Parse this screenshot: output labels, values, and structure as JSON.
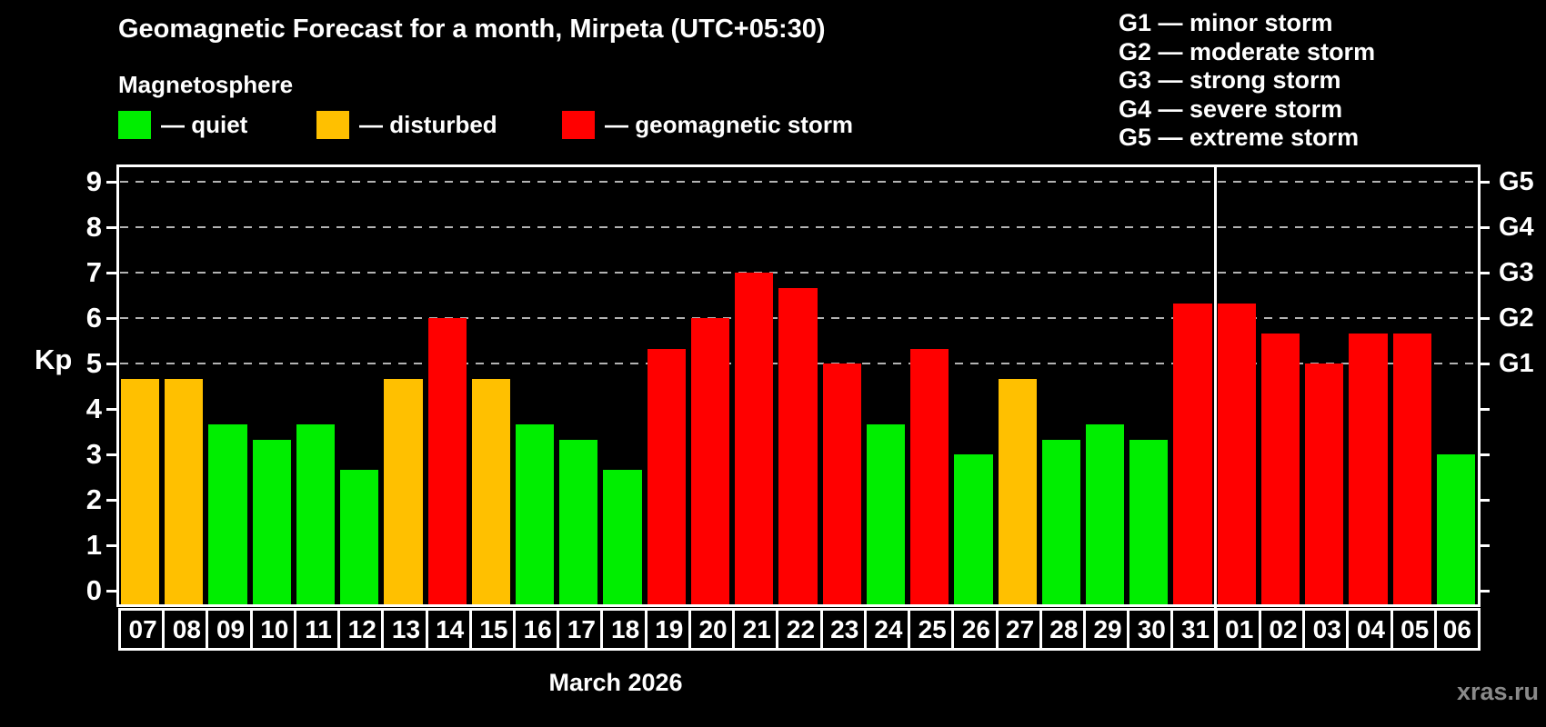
{
  "header": {
    "title": "Geomagnetic Forecast for a month, Mirpeta (UTC+05:30)",
    "subtitle": "Magnetosphere"
  },
  "legend": {
    "items": [
      {
        "id": "quiet",
        "label": "— quiet",
        "color": "#00ee00"
      },
      {
        "id": "disturbed",
        "label": "— disturbed",
        "color": "#ffc000"
      },
      {
        "id": "storm",
        "label": "— geomagnetic storm",
        "color": "#ff0000"
      }
    ],
    "g_scale": [
      "G1 — minor storm",
      "G2 — moderate storm",
      "G3 — strong storm",
      "G4 — severe storm",
      "G5 — extreme storm"
    ]
  },
  "footer": {
    "watermark": "xras.ru"
  },
  "chart_data": {
    "type": "bar",
    "title": "Geomagnetic Forecast for a month, Mirpeta (UTC+05:30)",
    "xlabel": "March 2026",
    "ylabel": "Kp",
    "ylim": [
      0,
      9
    ],
    "y_ticks": [
      0,
      1,
      2,
      3,
      4,
      5,
      6,
      7,
      8,
      9
    ],
    "gridlines_at": [
      5,
      6,
      7,
      8,
      9
    ],
    "grid": "horizontal dashed at storm levels",
    "right_axis": [
      {
        "kp": 5,
        "label": "G1"
      },
      {
        "kp": 6,
        "label": "G2"
      },
      {
        "kp": 7,
        "label": "G3"
      },
      {
        "kp": 8,
        "label": "G4"
      },
      {
        "kp": 9,
        "label": "G5"
      }
    ],
    "categories": [
      "07",
      "08",
      "09",
      "10",
      "11",
      "12",
      "13",
      "14",
      "15",
      "16",
      "17",
      "18",
      "19",
      "20",
      "21",
      "22",
      "23",
      "24",
      "25",
      "26",
      "27",
      "28",
      "29",
      "30",
      "31",
      "01",
      "02",
      "03",
      "04",
      "05",
      "06"
    ],
    "values": [
      4.67,
      4.67,
      3.67,
      3.33,
      3.67,
      2.67,
      4.67,
      6,
      4.67,
      3.67,
      3.33,
      2.67,
      5.33,
      6,
      7,
      6.67,
      5,
      3.67,
      5.33,
      3,
      4.67,
      3.33,
      3.67,
      3.33,
      6.33,
      6.33,
      5.67,
      5,
      5.67,
      5.67,
      3
    ],
    "levels": [
      "disturbed",
      "disturbed",
      "quiet",
      "quiet",
      "quiet",
      "quiet",
      "disturbed",
      "storm",
      "disturbed",
      "quiet",
      "quiet",
      "quiet",
      "storm",
      "storm",
      "storm",
      "storm",
      "storm",
      "quiet",
      "storm",
      "quiet",
      "disturbed",
      "quiet",
      "quiet",
      "quiet",
      "storm",
      "storm",
      "storm",
      "storm",
      "storm",
      "storm",
      "quiet"
    ],
    "colors": {
      "quiet": "#00ee00",
      "disturbed": "#ffc000",
      "storm": "#ff0000"
    },
    "month_boundary_index": 25
  }
}
